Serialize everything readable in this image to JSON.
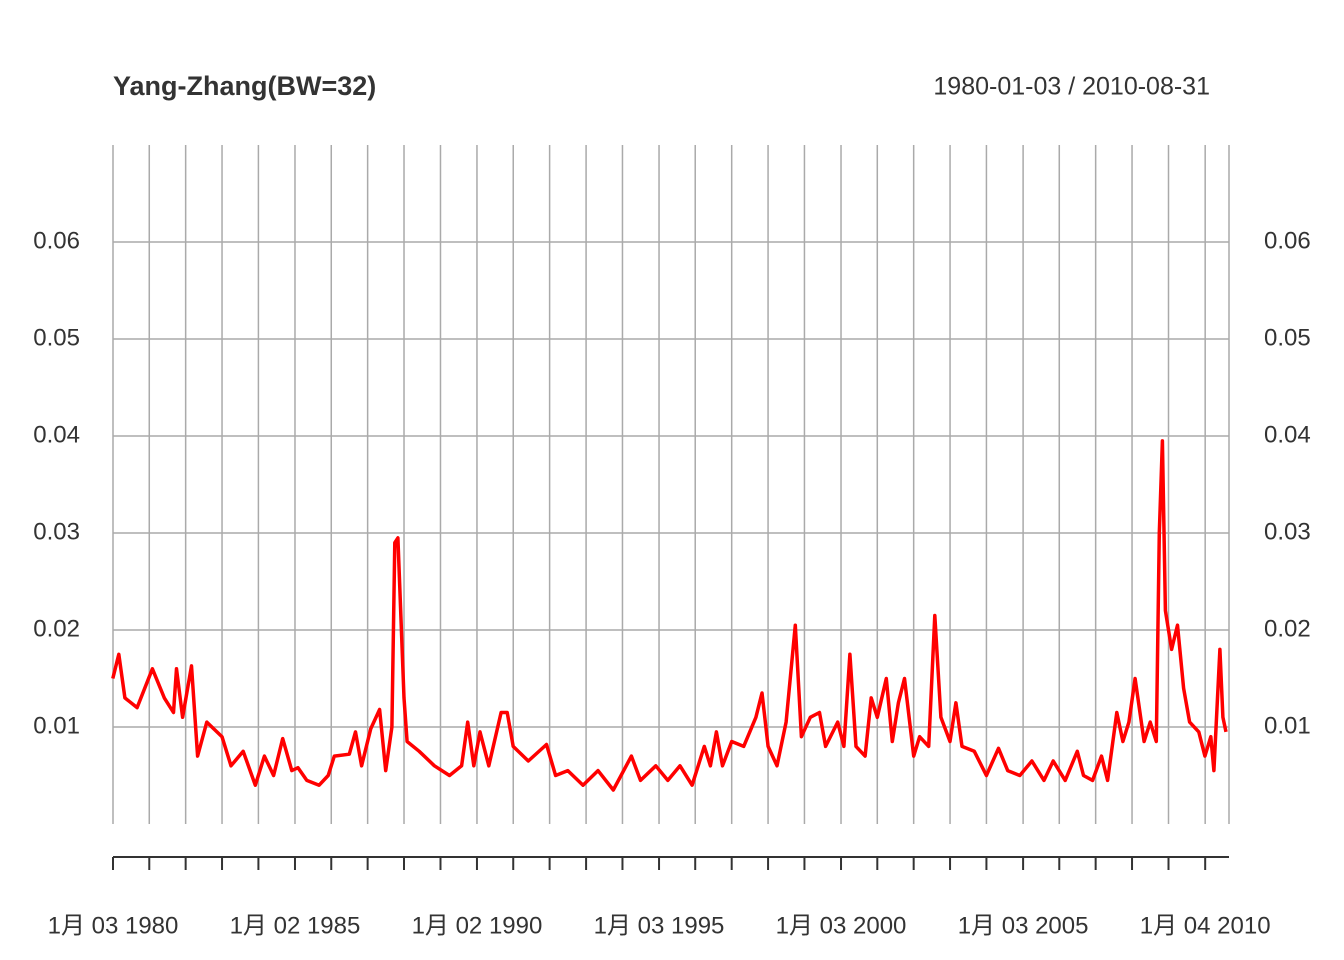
{
  "chart_data": {
    "type": "line",
    "title": "Yang-Zhang(BW=32)",
    "subtitle": "1980-01-03 / 2010-08-31",
    "color": "#ff0000",
    "grid": true,
    "xlim": [
      "1980-01-03",
      "2010-08-31"
    ],
    "xticks": [
      {
        "value": "1980-01-03",
        "label": "1月 03 1980"
      },
      "1981-01",
      "1982-01",
      "1983-01",
      "1984-01",
      {
        "value": "1985-01-02",
        "label": "1月 02 1985"
      },
      "1986-01",
      "1987-01",
      "1988-01",
      "1989-01",
      {
        "value": "1990-01-02",
        "label": "1月 02 1990"
      },
      "1991-01",
      "1992-01",
      "1993-01",
      "1994-01",
      {
        "value": "1995-01-03",
        "label": "1月 03 1995"
      },
      "1996-01",
      "1997-01",
      "1998-01",
      "1999-01",
      {
        "value": "2000-01-03",
        "label": "1月 03 2000"
      },
      "2001-01",
      "2002-01",
      "2003-01",
      "2004-01",
      {
        "value": "2005-01-03",
        "label": "1月 03 2005"
      },
      "2006-01",
      "2007-01",
      "2008-01",
      "2009-01",
      {
        "value": "2010-01-04",
        "label": "1月 04 2010"
      }
    ],
    "ylim": [
      0,
      0.07
    ],
    "yticks": [
      0.01,
      0.02,
      0.03,
      0.04,
      0.05,
      0.06
    ],
    "x": [
      "1980-01",
      "1980-03",
      "1980-05",
      "1980-09",
      "1981-02",
      "1981-06",
      "1981-09",
      "1981-10",
      "1981-12",
      "1982-03",
      "1982-05",
      "1982-08",
      "1983-01",
      "1983-04",
      "1983-08",
      "1983-12",
      "1984-03",
      "1984-06",
      "1984-09",
      "1984-12",
      "1985-02",
      "1985-05",
      "1985-09",
      "1985-12",
      "1986-02",
      "1986-07",
      "1986-09",
      "1986-11",
      "1987-02",
      "1987-05",
      "1987-07",
      "1987-09",
      "1987-10",
      "1987-11",
      "1988-01",
      "1988-02",
      "1988-06",
      "1988-11",
      "1989-04",
      "1989-08",
      "1989-10",
      "1989-12",
      "1990-02",
      "1990-05",
      "1990-09",
      "1990-11",
      "1991-01",
      "1991-06",
      "1991-12",
      "1992-03",
      "1992-07",
      "1992-12",
      "1993-05",
      "1993-10",
      "1994-04",
      "1994-07",
      "1994-12",
      "1995-04",
      "1995-08",
      "1995-12",
      "1996-04",
      "1996-06",
      "1996-08",
      "1996-10",
      "1997-01",
      "1997-05",
      "1997-09",
      "1997-11",
      "1998-01",
      "1998-04",
      "1998-07",
      "1998-10",
      "1998-12",
      "1999-03",
      "1999-06",
      "1999-08",
      "1999-12",
      "2000-02",
      "2000-04",
      "2000-06",
      "2000-09",
      "2000-11",
      "2001-01",
      "2001-04",
      "2001-06",
      "2001-08",
      "2001-10",
      "2002-01",
      "2002-03",
      "2002-06",
      "2002-08",
      "2002-10",
      "2003-01",
      "2003-03",
      "2003-05",
      "2003-09",
      "2004-01",
      "2004-05",
      "2004-08",
      "2004-12",
      "2005-04",
      "2005-08",
      "2005-11",
      "2006-03",
      "2006-07",
      "2006-09",
      "2006-12",
      "2007-03",
      "2007-05",
      "2007-08",
      "2007-10",
      "2007-12",
      "2008-02",
      "2008-05",
      "2008-07",
      "2008-09",
      "2008-10",
      "2008-11",
      "2008-12",
      "2009-02",
      "2009-04",
      "2009-06",
      "2009-08",
      "2009-11",
      "2010-01",
      "2010-03",
      "2010-04",
      "2010-06",
      "2010-07",
      "2010-08"
    ],
    "values": [
      0.015,
      0.0175,
      0.013,
      0.012,
      0.016,
      0.013,
      0.0115,
      0.016,
      0.011,
      0.0163,
      0.007,
      0.0105,
      0.009,
      0.006,
      0.0075,
      0.004,
      0.007,
      0.005,
      0.0088,
      0.0055,
      0.0058,
      0.0045,
      0.004,
      0.005,
      0.007,
      0.0072,
      0.0095,
      0.006,
      0.0098,
      0.0118,
      0.0055,
      0.01,
      0.029,
      0.0295,
      0.013,
      0.0085,
      0.0075,
      0.006,
      0.005,
      0.006,
      0.0105,
      0.006,
      0.0095,
      0.006,
      0.0115,
      0.0115,
      0.008,
      0.0065,
      0.0082,
      0.005,
      0.0055,
      0.004,
      0.0055,
      0.0035,
      0.007,
      0.0045,
      0.006,
      0.0045,
      0.006,
      0.004,
      0.008,
      0.006,
      0.0095,
      0.006,
      0.0085,
      0.008,
      0.011,
      0.0135,
      0.008,
      0.006,
      0.0105,
      0.0205,
      0.009,
      0.011,
      0.0115,
      0.008,
      0.0105,
      0.008,
      0.0175,
      0.008,
      0.007,
      0.013,
      0.011,
      0.015,
      0.0085,
      0.0125,
      0.015,
      0.007,
      0.009,
      0.008,
      0.0215,
      0.011,
      0.0085,
      0.0125,
      0.008,
      0.0075,
      0.005,
      0.0078,
      0.0055,
      0.005,
      0.0065,
      0.0045,
      0.0065,
      0.0045,
      0.0075,
      0.005,
      0.0045,
      0.007,
      0.0045,
      0.0115,
      0.0085,
      0.0105,
      0.015,
      0.0085,
      0.0105,
      0.0085,
      0.03,
      0.0395,
      0.022,
      0.018,
      0.0205,
      0.014,
      0.0105,
      0.0095,
      0.007,
      0.009,
      0.0055,
      0.018,
      0.011,
      0.0095
    ]
  }
}
